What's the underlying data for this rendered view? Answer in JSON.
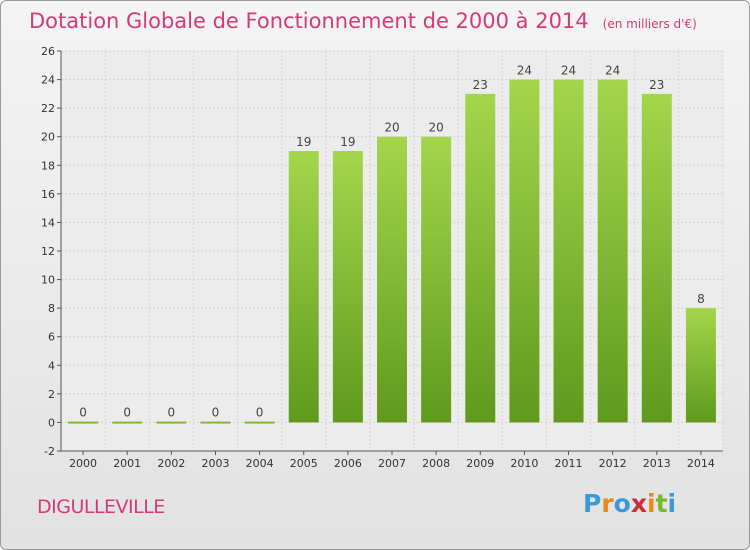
{
  "title": "Dotation Globale de Fonctionnement de 2000 à 2014",
  "unit": "(en milliers d'€)",
  "commune": "DIGULLEVILLE",
  "logo": {
    "letters": [
      "P",
      "r",
      "o",
      "x",
      "i",
      "t",
      "i"
    ],
    "colors": [
      "#3a9ad9",
      "#e8891a",
      "#3a9ad9",
      "#cc2f2f",
      "#e8891a",
      "#7ab929",
      "#3a9ad9"
    ]
  },
  "colors": {
    "bar": "#74b32a",
    "bar_light": "#a0d44a",
    "accent": "#d53a78"
  },
  "chart_data": {
    "type": "bar",
    "categories": [
      "2000",
      "2001",
      "2002",
      "2003",
      "2004",
      "2005",
      "2006",
      "2007",
      "2008",
      "2009",
      "2010",
      "2011",
      "2012",
      "2013",
      "2014"
    ],
    "values": [
      0,
      0,
      0,
      0,
      0,
      19,
      19,
      20,
      20,
      23,
      24,
      24,
      24,
      23,
      8
    ],
    "title": "Dotation Globale de Fonctionnement de 2000 à 2014",
    "ylim": [
      -2,
      26
    ],
    "yticks": [
      -2,
      0,
      2,
      4,
      6,
      8,
      10,
      12,
      14,
      16,
      18,
      20,
      22,
      24,
      26
    ],
    "grid": true
  }
}
